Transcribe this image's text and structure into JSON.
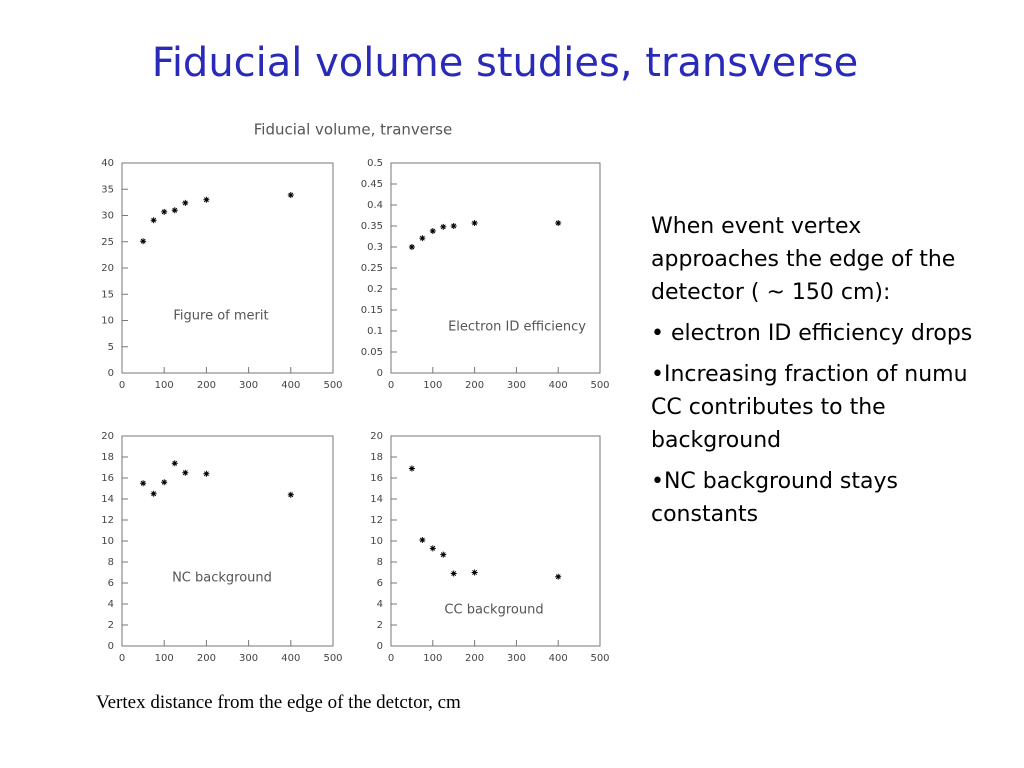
{
  "title": "Fiducial volume studies, transverse",
  "figure_title": "Fiducial volume, tranverse",
  "x_caption": "Vertex distance from the edge of the detctor, cm",
  "notes": [
    "When event vertex approaches the edge of the detector ( ~ 150 cm):",
    "• electron ID efficiency drops",
    "•Increasing fraction of numu CC contributes to the background",
    "•NC background stays constants"
  ],
  "chart_data": [
    {
      "type": "scatter",
      "label": "Figure of merit",
      "x": [
        50,
        75,
        100,
        125,
        150,
        200,
        400
      ],
      "values": [
        25.1,
        29.1,
        30.7,
        31,
        32.4,
        33,
        33.9
      ],
      "xlim": [
        0,
        500
      ],
      "xticks": [
        0,
        100,
        200,
        300,
        400,
        500
      ],
      "ylim": [
        0,
        40
      ],
      "yticks": [
        0,
        5,
        10,
        15,
        20,
        25,
        30,
        35,
        40
      ]
    },
    {
      "type": "scatter",
      "label": "Electron ID efficiency",
      "x": [
        50,
        75,
        100,
        125,
        150,
        200,
        400
      ],
      "values": [
        0.3,
        0.321,
        0.338,
        0.348,
        0.35,
        0.357,
        0.357
      ],
      "xlim": [
        0,
        500
      ],
      "xticks": [
        0,
        100,
        200,
        300,
        400,
        500
      ],
      "ylim": [
        0,
        0.5
      ],
      "yticks": [
        0,
        0.05,
        0.1,
        0.15,
        0.2,
        0.25,
        0.3,
        0.35,
        0.4,
        0.45,
        0.5
      ]
    },
    {
      "type": "scatter",
      "label": "NC background",
      "x": [
        50,
        75,
        100,
        125,
        150,
        200,
        400
      ],
      "values": [
        15.5,
        14.5,
        15.6,
        17.4,
        16.5,
        16.4,
        14.4
      ],
      "xlim": [
        0,
        500
      ],
      "xticks": [
        0,
        100,
        200,
        300,
        400,
        500
      ],
      "ylim": [
        0,
        20
      ],
      "yticks": [
        0,
        2,
        4,
        6,
        8,
        10,
        12,
        14,
        16,
        18,
        20
      ]
    },
    {
      "type": "scatter",
      "label": "CC background",
      "x": [
        50,
        75,
        100,
        125,
        150,
        200,
        400
      ],
      "values": [
        16.9,
        10.1,
        9.3,
        8.7,
        6.9,
        7.0,
        6.6
      ],
      "xlim": [
        0,
        500
      ],
      "xticks": [
        0,
        100,
        200,
        300,
        400,
        500
      ],
      "ylim": [
        0,
        20
      ],
      "yticks": [
        0,
        2,
        4,
        6,
        8,
        10,
        12,
        14,
        16,
        18,
        20
      ]
    }
  ]
}
